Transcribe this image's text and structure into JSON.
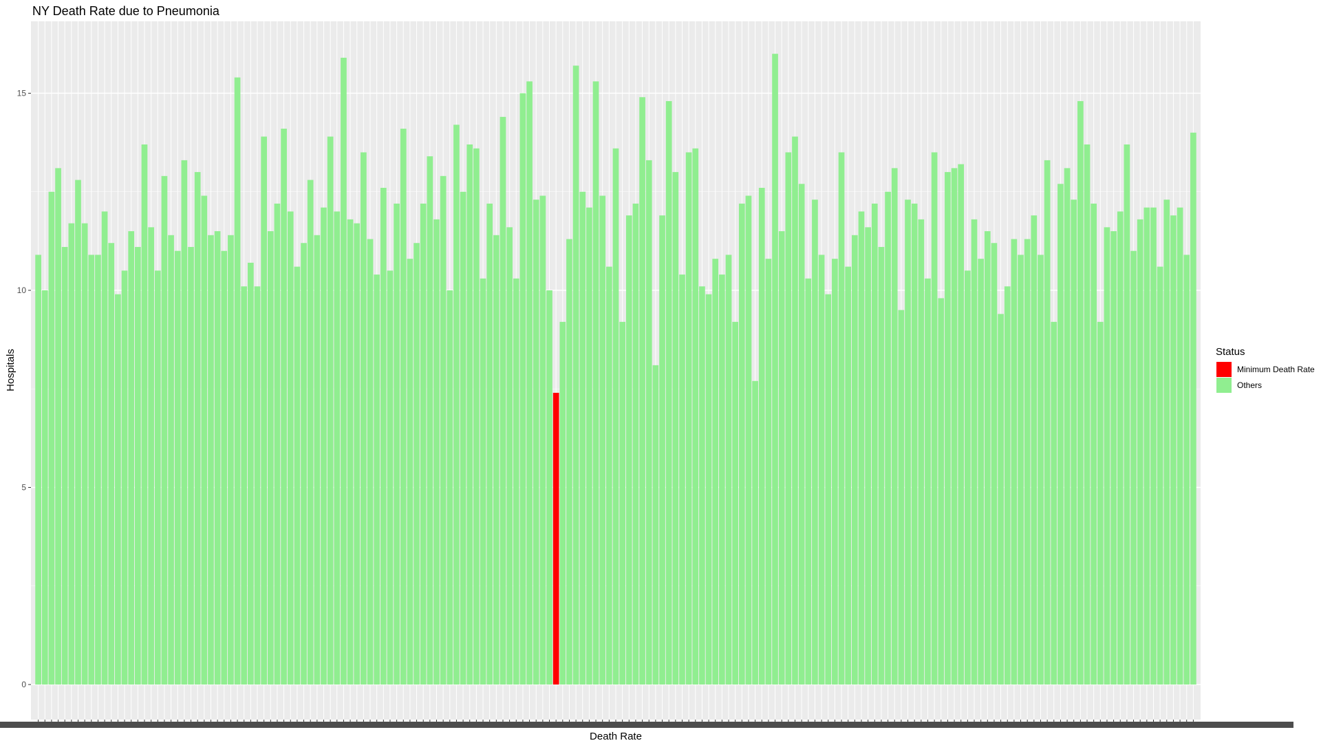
{
  "chart_data": {
    "type": "bar",
    "title": "NY Death Rate due to Pneumonia",
    "xlabel": "Death Rate",
    "ylabel": "Hospitals",
    "ylim": [
      0,
      16.7
    ],
    "yticks": [
      0,
      5,
      10,
      15
    ],
    "grid": true,
    "legend": {
      "title": "Status",
      "placement": "right",
      "entries": [
        {
          "label": "Minimum Death Rate",
          "color": "#FF0000"
        },
        {
          "label": "Others",
          "color": "#90EE90"
        }
      ]
    },
    "panel_color": "#EBEBEB",
    "grid_color": "#FFFFFF",
    "values": [
      10.9,
      10.0,
      12.5,
      13.1,
      11.1,
      11.7,
      12.8,
      11.7,
      10.9,
      10.9,
      12.0,
      11.2,
      9.9,
      10.5,
      11.5,
      11.1,
      13.7,
      11.6,
      10.5,
      12.9,
      11.4,
      11.0,
      13.3,
      11.1,
      13.0,
      12.4,
      11.4,
      11.5,
      11.0,
      11.4,
      15.4,
      10.1,
      10.7,
      10.1,
      13.9,
      11.5,
      12.2,
      14.1,
      12.0,
      10.6,
      11.2,
      12.8,
      11.4,
      12.1,
      13.9,
      12.0,
      15.9,
      11.8,
      11.7,
      13.5,
      11.3,
      10.4,
      12.6,
      10.5,
      12.2,
      14.1,
      10.8,
      11.2,
      12.2,
      13.4,
      11.8,
      12.9,
      10.0,
      14.2,
      12.5,
      13.7,
      13.6,
      10.3,
      12.2,
      11.4,
      14.4,
      11.6,
      10.3,
      15.0,
      15.3,
      12.3,
      12.4,
      10.0,
      7.4,
      9.2,
      11.3,
      15.7,
      12.5,
      12.1,
      15.3,
      12.4,
      10.6,
      13.6,
      9.2,
      11.9,
      12.2,
      14.9,
      13.3,
      8.1,
      11.9,
      14.8,
      13.0,
      10.4,
      13.5,
      13.6,
      10.1,
      9.9,
      10.8,
      10.4,
      10.9,
      9.2,
      12.2,
      12.4,
      7.7,
      12.6,
      10.8,
      16.0,
      11.5,
      13.5,
      13.9,
      12.7,
      10.3,
      12.3,
      10.9,
      9.9,
      10.8,
      13.5,
      10.6,
      11.4,
      12.0,
      11.6,
      12.2,
      11.1,
      12.5,
      13.1,
      9.5,
      12.3,
      12.2,
      11.8,
      10.3,
      13.5,
      9.8,
      13.0,
      13.1,
      13.2,
      10.5,
      11.8,
      10.8,
      11.5,
      11.2,
      9.4,
      10.1,
      11.3,
      10.9,
      11.3,
      11.9,
      10.9,
      13.3,
      9.2,
      12.7,
      13.1,
      12.3,
      14.8,
      13.7,
      12.2,
      9.2,
      11.6,
      11.5,
      12.0,
      13.7,
      11.0,
      11.8,
      12.1,
      12.1,
      10.6,
      12.3,
      11.9,
      12.1,
      10.9,
      14.0
    ],
    "highlight_index": 78
  }
}
